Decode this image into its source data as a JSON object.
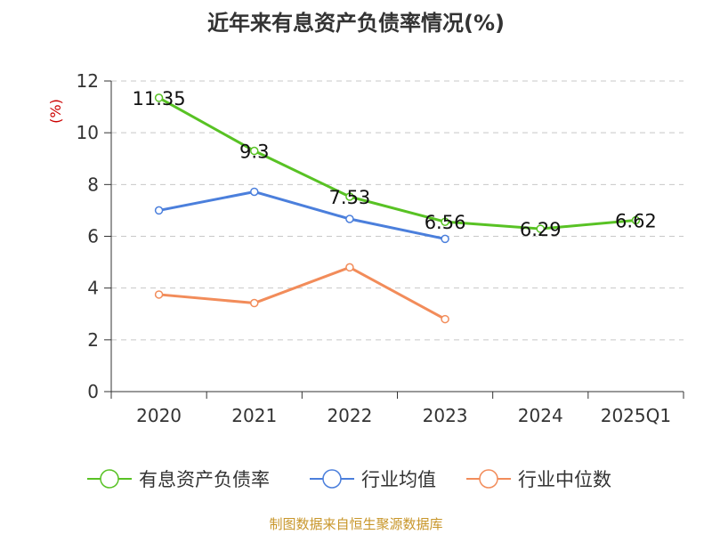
{
  "chart_data": {
    "type": "line",
    "title": "近年来有息资产负债率情况(%)",
    "ylabel": "(%)",
    "xlabel": "",
    "categories": [
      "2020",
      "2021",
      "2022",
      "2023",
      "2024",
      "2025Q1"
    ],
    "ylim": [
      0,
      12
    ],
    "yticks": [
      0,
      2,
      4,
      6,
      8,
      10,
      12
    ],
    "grid": true,
    "legend_position": "bottom",
    "series": [
      {
        "name": "有息资产负债率",
        "color": "#58c224",
        "values": [
          11.35,
          9.3,
          7.53,
          6.56,
          6.29,
          6.62
        ],
        "data_labels": [
          "11.35",
          "9.3",
          "7.53",
          "6.56",
          "6.29",
          "6.62"
        ]
      },
      {
        "name": "行业均值",
        "color": "#4b7fdc",
        "values": [
          7.0,
          7.72,
          6.67,
          5.9,
          null,
          null
        ]
      },
      {
        "name": "行业中位数",
        "color": "#f28c5a",
        "values": [
          3.75,
          3.42,
          4.8,
          2.8,
          null,
          null
        ]
      }
    ]
  },
  "source_note": "制图数据来自恒生聚源数据库",
  "colors": {
    "source_note": "#c8962a",
    "ylabel": "#cc0000",
    "grid": "#c8c8c8",
    "axis": "#333333"
  }
}
